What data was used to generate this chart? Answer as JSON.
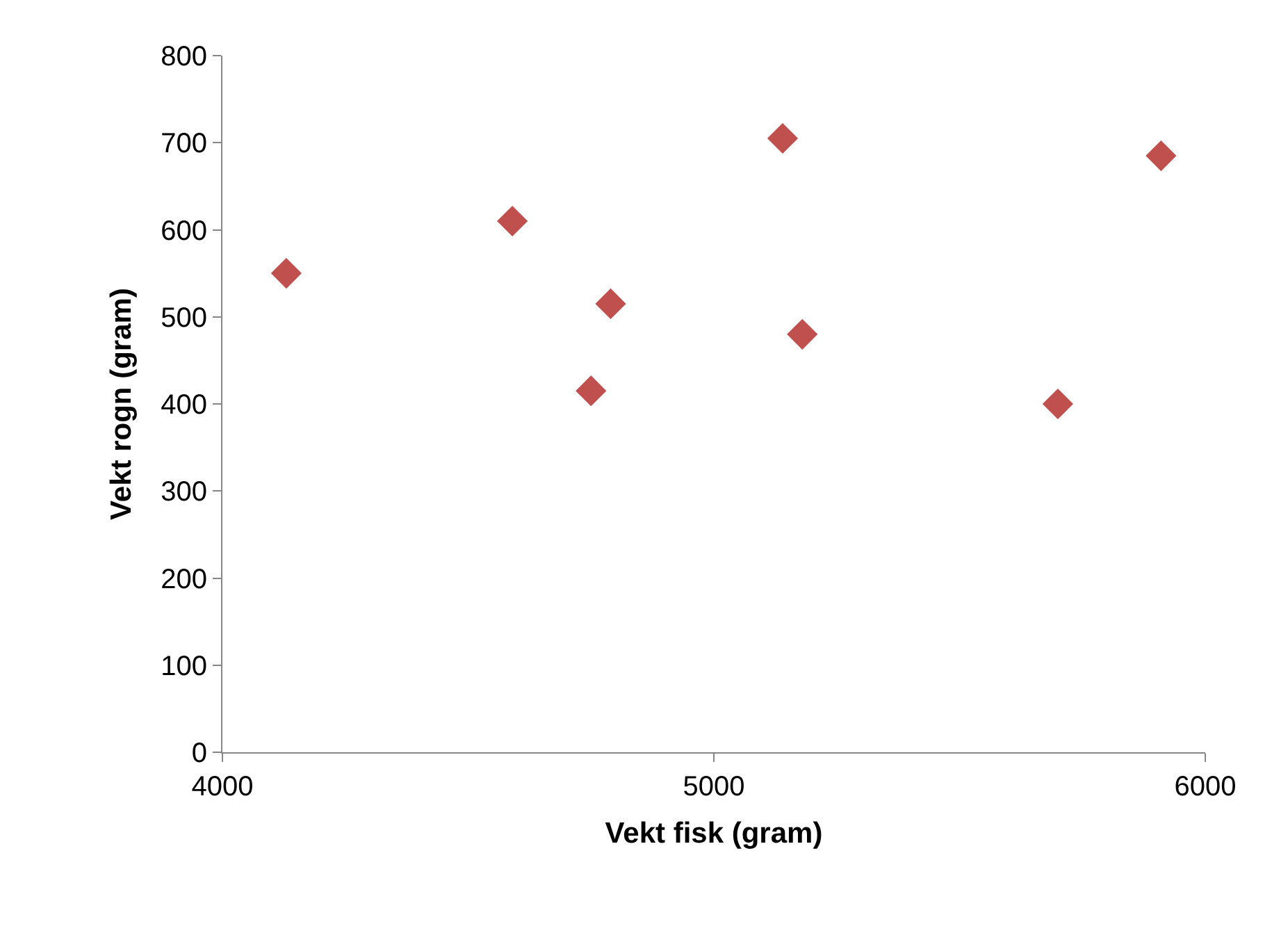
{
  "chart_data": {
    "type": "scatter",
    "xlabel": "Vekt fisk (gram)",
    "ylabel": "Vekt rogn (gram)",
    "x": [
      4130,
      4590,
      4790,
      4750,
      5140,
      5180,
      5700,
      5910
    ],
    "series": [
      {
        "color": "#c0504d",
        "values": [
          550,
          610,
          515,
          415,
          705,
          480,
          400,
          685
        ]
      }
    ],
    "xlim": [
      4000,
      6000
    ],
    "xticks": [
      4000,
      5000,
      6000
    ],
    "ylim": [
      0,
      800
    ],
    "yticks": [
      0,
      100,
      200,
      300,
      400,
      500,
      600,
      700,
      800
    ],
    "legend": false,
    "marker": "diamond"
  }
}
